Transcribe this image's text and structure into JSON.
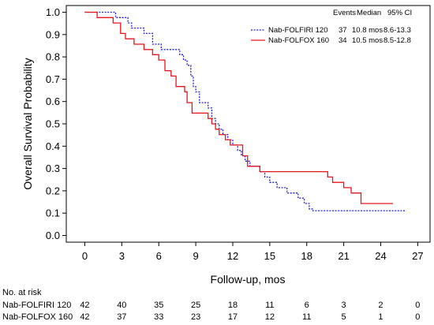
{
  "chart_data": {
    "type": "line",
    "subtype": "kaplan-meier",
    "title": "",
    "xlabel": "Follow-up, mos",
    "ylabel": "Overall Survival Probability",
    "xlim": [
      -1.5,
      28
    ],
    "ylim": [
      -0.03,
      1.03
    ],
    "x_ticks": [
      0,
      3,
      6,
      9,
      12,
      15,
      18,
      21,
      24,
      27
    ],
    "y_ticks": [
      0.0,
      0.1,
      0.2,
      0.3,
      0.4,
      0.5,
      0.6,
      0.7,
      0.8,
      0.9,
      1.0
    ],
    "y_tick_labels": [
      "0.0",
      "0.1",
      "0.2",
      "0.3",
      "0.4",
      "0.5",
      "0.6",
      "0.7",
      "0.8",
      "0.9",
      "1.0"
    ],
    "grid": false,
    "legend": {
      "placement": "top-right",
      "header": {
        "events": "Events",
        "median": "Median",
        "ci": "95% CI"
      }
    },
    "series": [
      {
        "name": "Nab-FOLFIRI 120",
        "color": "#1f1fd6",
        "dash": "dotted",
        "events": "37",
        "median": "10.8 mos",
        "ci": "8.6-13.3",
        "steps": [
          [
            0,
            1.0
          ],
          [
            2.5,
            0.976
          ],
          [
            3.5,
            0.952
          ],
          [
            3.8,
            0.929
          ],
          [
            4.8,
            0.905
          ],
          [
            5.5,
            0.857
          ],
          [
            6.2,
            0.833
          ],
          [
            7.7,
            0.81
          ],
          [
            8.0,
            0.786
          ],
          [
            8.3,
            0.762
          ],
          [
            8.6,
            0.714
          ],
          [
            8.8,
            0.667
          ],
          [
            9.0,
            0.643
          ],
          [
            9.3,
            0.595
          ],
          [
            10.0,
            0.571
          ],
          [
            10.3,
            0.524
          ],
          [
            10.6,
            0.5
          ],
          [
            10.9,
            0.476
          ],
          [
            11.2,
            0.452
          ],
          [
            11.6,
            0.429
          ],
          [
            12.0,
            0.405
          ],
          [
            12.4,
            0.381
          ],
          [
            12.7,
            0.357
          ],
          [
            13.0,
            0.333
          ],
          [
            13.4,
            0.31
          ],
          [
            14.2,
            0.286
          ],
          [
            14.6,
            0.262
          ],
          [
            15.0,
            0.238
          ],
          [
            15.6,
            0.214
          ],
          [
            16.4,
            0.19
          ],
          [
            17.3,
            0.167
          ],
          [
            17.8,
            0.143
          ],
          [
            18.2,
            0.119
          ],
          [
            18.5,
            0.111
          ],
          [
            26.0,
            0.111
          ]
        ]
      },
      {
        "name": "Nab-FOLFOX 160",
        "color": "#e8141c",
        "dash": "solid",
        "events": "34",
        "median": "10.5 mos",
        "ci": "8.5-12.8",
        "steps": [
          [
            0,
            1.0
          ],
          [
            1.0,
            0.976
          ],
          [
            2.3,
            0.952
          ],
          [
            2.9,
            0.905
          ],
          [
            3.3,
            0.881
          ],
          [
            4.0,
            0.857
          ],
          [
            4.8,
            0.833
          ],
          [
            5.5,
            0.81
          ],
          [
            6.0,
            0.786
          ],
          [
            6.5,
            0.738
          ],
          [
            7.0,
            0.714
          ],
          [
            7.4,
            0.667
          ],
          [
            8.1,
            0.643
          ],
          [
            8.3,
            0.595
          ],
          [
            8.7,
            0.548
          ],
          [
            10.0,
            0.524
          ],
          [
            10.3,
            0.5
          ],
          [
            10.6,
            0.476
          ],
          [
            10.9,
            0.452
          ],
          [
            11.4,
            0.429
          ],
          [
            11.8,
            0.405
          ],
          [
            12.8,
            0.357
          ],
          [
            13.2,
            0.31
          ],
          [
            14.2,
            0.286
          ],
          [
            19.7,
            0.262
          ],
          [
            20.1,
            0.238
          ],
          [
            21.0,
            0.214
          ],
          [
            21.6,
            0.19
          ],
          [
            22.4,
            0.143
          ],
          [
            25.0,
            0.143
          ]
        ]
      }
    ]
  },
  "risk_table": {
    "title": "No. at risk",
    "times": [
      0,
      3,
      6,
      9,
      12,
      15,
      18,
      21,
      24,
      27
    ],
    "rows": [
      {
        "label": "Nab-FOLFIRI 120",
        "counts": [
          "42",
          "40",
          "35",
          "25",
          "18",
          "11",
          "6",
          "3",
          "2",
          "0"
        ]
      },
      {
        "label": "Nab-FOLFOX 160",
        "counts": [
          "42",
          "37",
          "33",
          "23",
          "17",
          "12",
          "11",
          "5",
          "1",
          "0"
        ]
      }
    ]
  }
}
